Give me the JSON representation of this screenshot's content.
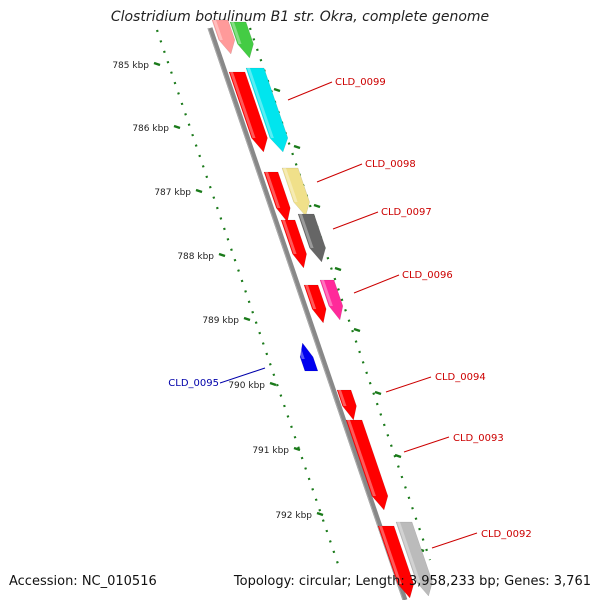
{
  "title": "Clostridium botulinum B1 str. Okra, complete genome",
  "footer": {
    "accession": "Accession: NC_010516",
    "summary": "Topology: circular; Length: 3,958,233 bp; Genes: 3,761"
  },
  "colors": {
    "backbone": "#777777",
    "ruler": "#1a7a1a",
    "label_red": "#cc0000",
    "label_blue": "#0000aa"
  },
  "ruler_ticks": [
    {
      "label": "785 kbp"
    },
    {
      "label": "786 kbp"
    },
    {
      "label": "787 kbp"
    },
    {
      "label": "788 kbp"
    },
    {
      "label": "789 kbp"
    },
    {
      "label": "790 kbp"
    },
    {
      "label": "791 kbp"
    },
    {
      "label": "792 kbp"
    }
  ],
  "genes": [
    {
      "name": "CLD_0099",
      "label_color": "#cc0000"
    },
    {
      "name": "CLD_0098",
      "label_color": "#cc0000"
    },
    {
      "name": "CLD_0097",
      "label_color": "#cc0000"
    },
    {
      "name": "CLD_0096",
      "label_color": "#cc0000"
    },
    {
      "name": "CLD_0095",
      "label_color": "#0000aa"
    },
    {
      "name": "CLD_0094",
      "label_color": "#cc0000"
    },
    {
      "name": "CLD_0093",
      "label_color": "#cc0000"
    },
    {
      "name": "CLD_0092",
      "label_color": "#cc0000"
    }
  ]
}
